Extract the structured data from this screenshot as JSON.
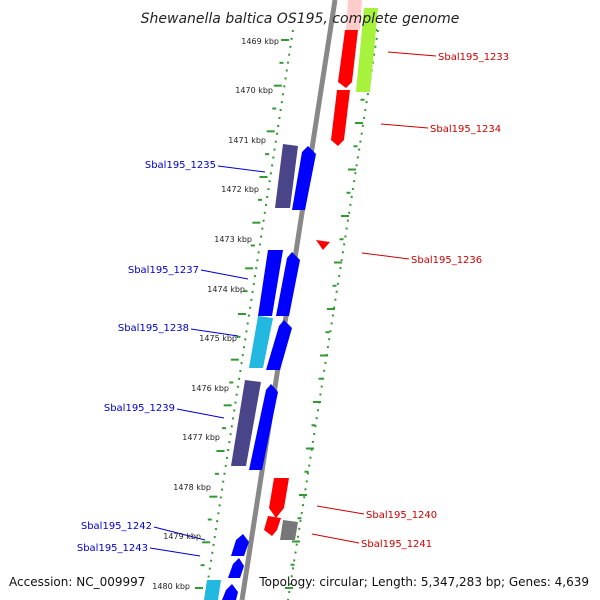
{
  "header": {
    "title": "Shewanella baltica OS195, complete genome"
  },
  "footer": {
    "accession": "Accession: NC_009997",
    "topology": "Topology: circular; Length: 5,347,283 bp; Genes: 4,639"
  },
  "colors": {
    "forward_label": "#0000cc",
    "reverse_label": "#cc0000",
    "ruler_tick": "#339933",
    "backbone": "#888888",
    "red_gene": "#ff0000",
    "blue_gene": "#0000ff",
    "dark_gene": "#4a4488",
    "cyan_gene": "#22b8e0",
    "lime_gene": "#a6f23c",
    "pink_gene": "#ffcccc",
    "gray_gene": "#777777"
  },
  "ruler": {
    "labels": [
      "1469 kbp",
      "1470 kbp",
      "1471 kbp",
      "1472 kbp",
      "1473 kbp",
      "1474 kbp",
      "1475 kbp",
      "1476 kbp",
      "1477 kbp",
      "1478 kbp",
      "1479 kbp",
      "1480 kbp"
    ]
  },
  "genes": {
    "forward": [
      {
        "label": "Sbal195_1235"
      },
      {
        "label": "Sbal195_1237"
      },
      {
        "label": "Sbal195_1238"
      },
      {
        "label": "Sbal195_1239"
      },
      {
        "label": "Sbal195_1242"
      },
      {
        "label": "Sbal195_1243"
      }
    ],
    "reverse": [
      {
        "label": "Sbal195_1233"
      },
      {
        "label": "Sbal195_1234"
      },
      {
        "label": "Sbal195_1236"
      },
      {
        "label": "Sbal195_1240"
      },
      {
        "label": "Sbal195_1241"
      }
    ]
  }
}
